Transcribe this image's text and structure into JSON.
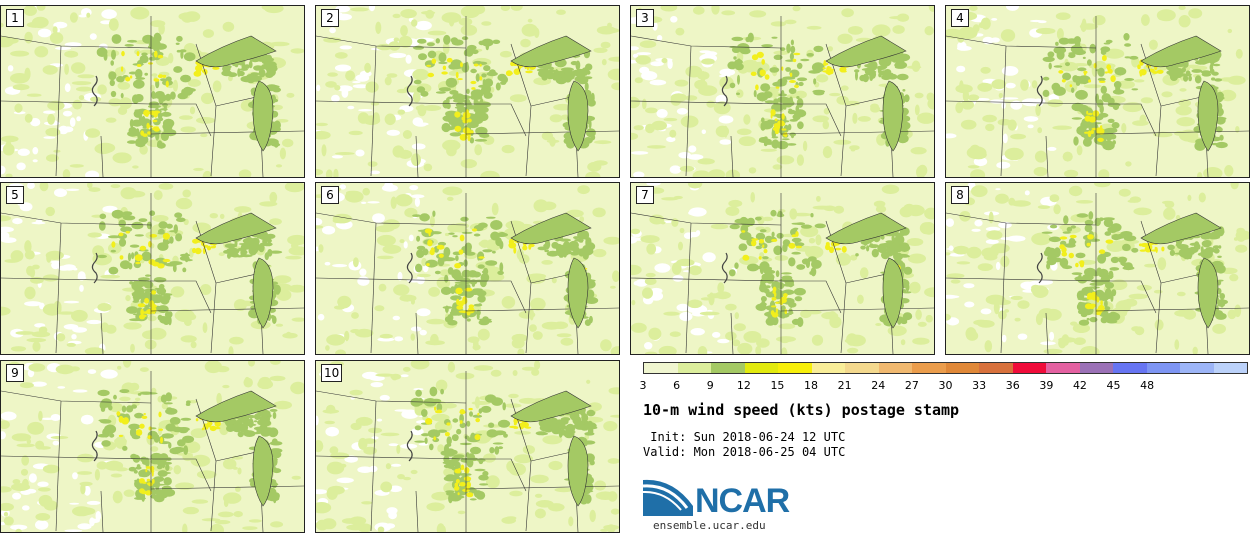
{
  "panels": [
    {
      "label": "1"
    },
    {
      "label": "2"
    },
    {
      "label": "3"
    },
    {
      "label": "4"
    },
    {
      "label": "5"
    },
    {
      "label": "6"
    },
    {
      "label": "7"
    },
    {
      "label": "8"
    },
    {
      "label": "9"
    },
    {
      "label": "10"
    }
  ],
  "colorbar": {
    "colors": [
      "#f0f6d0",
      "#dcee9c",
      "#a4c964",
      "#e2ea0e",
      "#f7ef0a",
      "#f9ee99",
      "#f4d98e",
      "#f1b970",
      "#eb9d4c",
      "#e08838",
      "#d8713c",
      "#f00c3a",
      "#e461a1",
      "#9b71b6",
      "#6775f2",
      "#7e95f3",
      "#9db5f7",
      "#bcd2fa"
    ],
    "tick_labels": [
      "3",
      "6",
      "9",
      "12",
      "15",
      "18",
      "21",
      "24",
      "27",
      "30",
      "33",
      "36",
      "39",
      "42",
      "45",
      "48"
    ]
  },
  "title": "10-m wind speed (kts) postage stamp",
  "init": " Init: Sun 2018-06-24 12 UTC",
  "valid": "Valid: Mon 2018-06-25 04 UTC",
  "logo": {
    "text": "NCAR",
    "website": "ensemble.ucar.edu"
  },
  "colors": {
    "light_green": "#eef6c6",
    "mid_green": "#dcee9c",
    "dark_green": "#a4c964",
    "yellow": "#f2ef1c"
  }
}
